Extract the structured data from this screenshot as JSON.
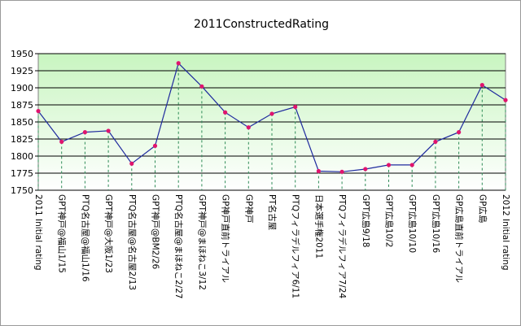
{
  "chart_data": {
    "type": "line",
    "title": "2011ConstructedRating",
    "xlabel": "",
    "ylabel": "",
    "ylim": [
      1750,
      1950
    ],
    "yticks": [
      1750,
      1775,
      1800,
      1825,
      1850,
      1875,
      1900,
      1925,
      1950
    ],
    "grid": true,
    "legend": "none",
    "colors": {
      "plot_bg_top": "#c8f5c0",
      "plot_bg_bottom": "#ffffff",
      "line": "#1f2a9e",
      "marker": "#e0146e",
      "grid": "#000000",
      "drop_line": "#2e8b57"
    },
    "categories": [
      "2011 Initial rating",
      "GPT神戸@福山1/15",
      "PTQ名古屋@福山1/16",
      "GPT神戸@大阪1/23",
      "PTQ名古屋@名古屋2/13",
      "GPT神戸@BM2/26",
      "PTQ名古屋@まほねこ2/27",
      "GPT神戸@まほねこ3/12",
      "GP神戸直前トライアル",
      "GP神戸",
      "PT名古屋",
      "PTQフィラデルフィア6/11",
      "日本選手権2011",
      "PTQフィラデルフィア7/24",
      "GPT広島9/18",
      "GPT広島10/2",
      "GPT広島10/10",
      "GPT広島10/16",
      "GP広島直前トライアル",
      "GP広島",
      "2012 Initial rating"
    ],
    "values": [
      1866,
      1821,
      1835,
      1837,
      1789,
      1815,
      1936,
      1902,
      1864,
      1842,
      1862,
      1872,
      1778,
      1777,
      1781,
      1787,
      1787,
      1821,
      1835,
      1904,
      1882
    ]
  }
}
